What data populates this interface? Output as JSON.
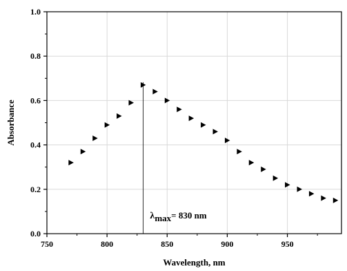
{
  "chart_data": {
    "type": "scatter",
    "title": "",
    "xlabel": "Wavelength, nm",
    "ylabel": "Absorbance",
    "xlim": [
      750,
      995
    ],
    "ylim": [
      0.0,
      1.0
    ],
    "x_ticks": [
      750,
      800,
      850,
      900,
      950
    ],
    "y_ticks": [
      0.0,
      0.2,
      0.4,
      0.6,
      0.8,
      1.0
    ],
    "x_tick_labels": [
      "750",
      "800",
      "850",
      "900",
      "950"
    ],
    "y_tick_labels": [
      "0.0",
      "0.2",
      "0.4",
      "0.6",
      "0.8",
      "1.0"
    ],
    "grid": true,
    "marker": "right-pointing-triangle",
    "series": [
      {
        "x": [
          770,
          780,
          790,
          800,
          810,
          820,
          830,
          840,
          850,
          860,
          870,
          880,
          890,
          900,
          910,
          920,
          930,
          940,
          950,
          960,
          970,
          980,
          990
        ],
        "y": [
          0.32,
          0.37,
          0.43,
          0.49,
          0.53,
          0.59,
          0.67,
          0.64,
          0.6,
          0.56,
          0.52,
          0.49,
          0.46,
          0.42,
          0.37,
          0.32,
          0.29,
          0.25,
          0.22,
          0.2,
          0.18,
          0.16,
          0.15
        ]
      }
    ],
    "annotation": {
      "symbol": "λ",
      "subscript": "max",
      "text": "= 830 nm",
      "x": 830
    }
  }
}
